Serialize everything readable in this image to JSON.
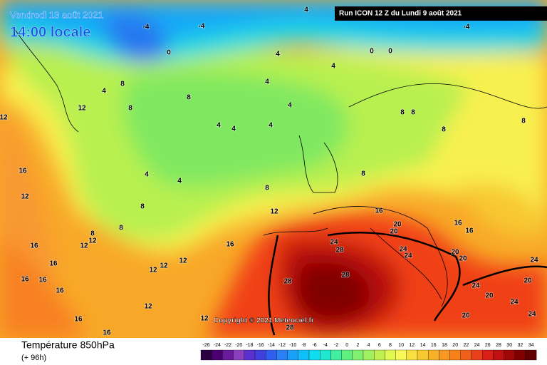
{
  "header": {
    "date": "Vendredi 13 août 2021",
    "time": "14:00 locale",
    "run": "Run ICON 12 Z du Lundi 9 août 2021"
  },
  "copyright": "Copyright © 2021 Meteociel.fr",
  "footer": {
    "title": "Température 850hPa",
    "lead": "(+ 96h)"
  },
  "legend": {
    "ticks": [
      -26,
      -24,
      -22,
      -20,
      -18,
      -16,
      -14,
      -12,
      -10,
      -8,
      -6,
      -4,
      -2,
      0,
      2,
      4,
      6,
      8,
      10,
      12,
      14,
      16,
      18,
      20,
      22,
      24,
      26,
      28,
      30,
      32,
      34
    ],
    "colors": [
      "#2b0040",
      "#4a0070",
      "#6a1a9a",
      "#8a3fbf",
      "#5a2fd0",
      "#3f3fe0",
      "#2f5fef",
      "#2a80f5",
      "#1aa0f8",
      "#10c0f8",
      "#10dcf0",
      "#20e8d0",
      "#40f0a0",
      "#60f080",
      "#80f070",
      "#a0f060",
      "#c0f050",
      "#e0f850",
      "#f8f858",
      "#f8e040",
      "#f8c830",
      "#f8b028",
      "#f89820",
      "#f88018",
      "#f06018",
      "#e84018",
      "#d82018",
      "#c01010",
      "#a00808",
      "#800000",
      "#600000"
    ]
  },
  "contour_labels": [
    4,
    -4,
    -4,
    -4,
    0,
    0,
    0,
    4,
    4,
    4,
    4,
    8,
    8,
    12,
    8,
    4,
    4,
    4,
    4,
    8,
    8,
    8,
    8,
    4,
    4,
    8,
    8,
    8,
    8,
    12,
    16,
    12,
    16,
    20,
    20,
    16,
    16,
    24,
    28,
    24,
    24,
    20,
    20,
    28,
    28,
    16,
    12,
    12,
    12,
    16,
    16,
    16,
    16,
    16,
    12,
    16,
    16,
    12,
    28,
    20,
    24,
    24,
    20,
    24,
    20,
    24,
    12,
    12,
    12,
    8
  ]
}
